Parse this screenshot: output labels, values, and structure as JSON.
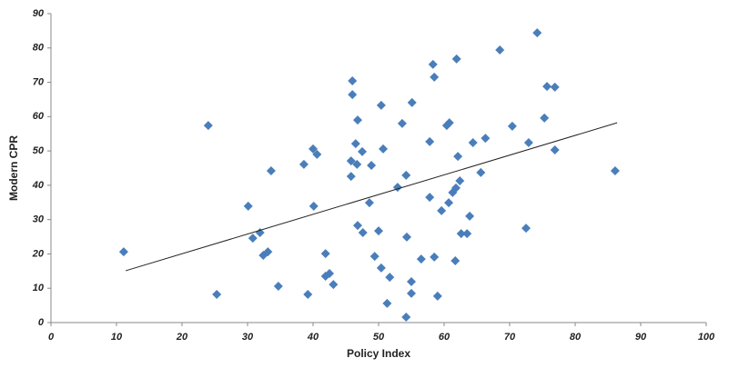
{
  "chart_data": {
    "type": "scatter",
    "x_label": "Policy Index",
    "y_label": "Modern CPR",
    "x": [
      11.1,
      25.3,
      24.0,
      30.1,
      30.8,
      31.9,
      32.4,
      33.1,
      33.6,
      34.7,
      38.6,
      39.2,
      40.0,
      40.6,
      40.1,
      41.9,
      41.9,
      42.5,
      43.1,
      46.0,
      46.0,
      45.8,
      45.8,
      46.5,
      46.7,
      46.8,
      46.8,
      47.5,
      47.6,
      48.6,
      48.9,
      49.4,
      50.4,
      50.7,
      50.4,
      50.0,
      51.3,
      51.7,
      52.9,
      53.6,
      54.2,
      54.3,
      54.2,
      55.1,
      55.0,
      55.0,
      56.5,
      57.8,
      57.8,
      58.3,
      58.5,
      58.5,
      59.0,
      59.6,
      60.4,
      60.8,
      60.7,
      61.3,
      61.8,
      61.7,
      61.9,
      62.1,
      62.4,
      62.6,
      63.5,
      63.9,
      64.4,
      65.6,
      66.3,
      68.5,
      70.4,
      72.5,
      72.9,
      74.2,
      75.3,
      75.7,
      76.9,
      76.9,
      86.1
    ],
    "values": [
      20.6,
      8.2,
      57.4,
      33.9,
      24.6,
      26.2,
      19.6,
      20.6,
      44.2,
      10.6,
      46.1,
      8.2,
      50.6,
      49.0,
      33.9,
      20.1,
      13.5,
      14.3,
      11.1,
      70.4,
      66.4,
      47.1,
      42.6,
      52.1,
      46.1,
      59.0,
      28.3,
      49.8,
      26.2,
      34.9,
      45.8,
      19.3,
      63.3,
      50.6,
      15.9,
      26.7,
      5.6,
      13.2,
      39.4,
      58.0,
      42.9,
      24.9,
      1.6,
      64.1,
      11.9,
      8.5,
      18.5,
      52.7,
      36.5,
      75.2,
      71.5,
      19.1,
      7.7,
      32.6,
      57.4,
      58.2,
      34.9,
      37.9,
      39.2,
      18.0,
      76.8,
      48.4,
      41.3,
      25.9,
      25.9,
      31.0,
      52.4,
      43.7,
      53.7,
      79.4,
      57.2,
      27.5,
      52.4,
      84.4,
      59.6,
      68.8,
      68.6,
      50.3,
      44.2
    ],
    "color": "#4a7ebb",
    "trendline": {
      "x": [
        11.4,
        86.4
      ],
      "values": [
        15.1,
        58.2
      ],
      "color": "#222222"
    },
    "xlim": [
      0,
      100
    ],
    "xticks": [
      0,
      10,
      20,
      30,
      40,
      50,
      60,
      70,
      80,
      90,
      100
    ],
    "ylim": [
      0,
      90
    ],
    "yticks": [
      0,
      10,
      20,
      30,
      40,
      50,
      60,
      70,
      80,
      90
    ],
    "grid": false
  }
}
